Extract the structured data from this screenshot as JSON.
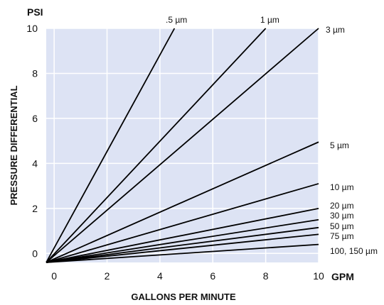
{
  "chart_data": {
    "type": "line",
    "x_unit_label": "GPM",
    "y_unit_label": "PSI",
    "xlabel": "GALLONS PER MINUTE",
    "ylabel": "PRESSURE DIFFERENTIAL",
    "xlim": [
      -0.3,
      10
    ],
    "ylim": [
      -0.4,
      10
    ],
    "x_ticks": [
      "0",
      "2",
      "4",
      "6",
      "8",
      "10"
    ],
    "y_ticks": [
      "0",
      "2",
      "4",
      "6",
      "8",
      "10"
    ],
    "grid": true,
    "background_color": "#dde3f4",
    "grid_color": "#ffffff",
    "line_color": "#000000",
    "series": [
      {
        "name": ".5 µm",
        "points": [
          [
            -0.3,
            -0.4
          ],
          [
            4.55,
            10
          ]
        ]
      },
      {
        "name": "1 µm",
        "points": [
          [
            -0.3,
            -0.4
          ],
          [
            8.0,
            10
          ]
        ]
      },
      {
        "name": "3 µm",
        "points": [
          [
            -0.3,
            -0.4
          ],
          [
            10,
            10
          ]
        ]
      },
      {
        "name": "5 µm",
        "points": [
          [
            -0.3,
            -0.4
          ],
          [
            10,
            4.95
          ]
        ]
      },
      {
        "name": "10 µm",
        "points": [
          [
            -0.3,
            -0.4
          ],
          [
            10,
            3.1
          ]
        ]
      },
      {
        "name": "20 µm",
        "points": [
          [
            -0.3,
            -0.4
          ],
          [
            10,
            2.0
          ]
        ]
      },
      {
        "name": "30 µm",
        "points": [
          [
            -0.3,
            -0.4
          ],
          [
            10,
            1.5
          ]
        ]
      },
      {
        "name": "50 µm",
        "points": [
          [
            -0.3,
            -0.4
          ],
          [
            10,
            1.15
          ]
        ]
      },
      {
        "name": "75 µm",
        "points": [
          [
            -0.3,
            -0.4
          ],
          [
            10,
            0.85
          ]
        ]
      },
      {
        "name": "100, 150 µm",
        "points": [
          [
            -0.3,
            -0.4
          ],
          [
            10,
            0.4
          ]
        ]
      }
    ]
  }
}
